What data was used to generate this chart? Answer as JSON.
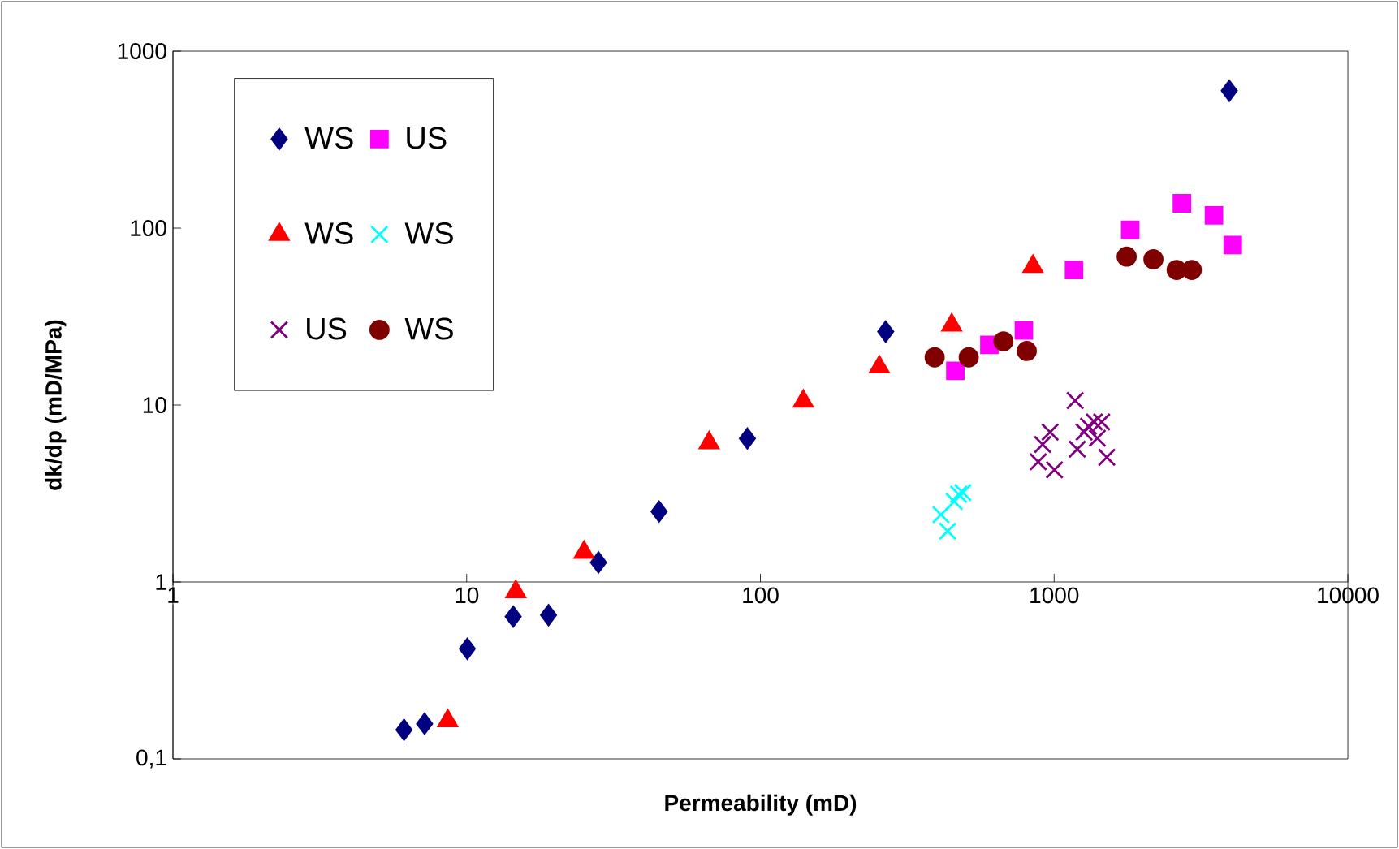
{
  "chart_data": {
    "type": "scatter",
    "xlabel": "Permeability (mD)",
    "ylabel": "dk/dp (mD/MPa)",
    "log": "xy",
    "grid": false,
    "legend": "top left",
    "xlim": [
      1,
      10000
    ],
    "xticks": [
      1,
      10,
      100,
      1000,
      10000
    ],
    "ylim": [
      0.1,
      1000
    ],
    "yticks": [
      {
        "value": 0.1,
        "label": "0,1"
      },
      1,
      10,
      100,
      1000
    ],
    "series": [
      {
        "name": "WS",
        "color": "#000080",
        "marker": "diamond",
        "x": [
          6.12,
          7.19,
          10.05,
          14.4,
          19.0,
          28.1,
          45.2,
          90.3,
          267,
          3948
        ],
        "values": [
          0.146,
          0.158,
          0.419,
          0.637,
          0.65,
          1.29,
          2.5,
          6.47,
          26.0,
          597
        ]
      },
      {
        "name": "US",
        "color": "#ff00ff",
        "marker": "square",
        "x": [
          461,
          602,
          789,
          1169,
          1816,
          2723,
          3501,
          4057
        ],
        "values": [
          15.6,
          21.9,
          26.4,
          58.0,
          97.7,
          138,
          118,
          80.2
        ]
      },
      {
        "name": "WS",
        "color": "#ff0000",
        "marker": "triangle",
        "x": [
          8.62,
          14.7,
          25.1,
          66.9,
          140,
          254,
          448,
          847
        ],
        "values": [
          0.164,
          0.88,
          1.47,
          6.11,
          10.5,
          16.4,
          28.3,
          60.7
        ]
      },
      {
        "name": "WS",
        "color": "#00ffff",
        "marker": "cross",
        "x": [
          434,
          412,
          457,
          489,
          473
        ],
        "values": [
          1.94,
          2.4,
          2.85,
          3.2,
          3.13
        ]
      },
      {
        "name": "US",
        "color": "#800080",
        "marker": "cross",
        "x": [
          1179,
          969,
          914,
          883,
          1003,
          1199,
          1511,
          1309,
          1371,
          1452,
          1403,
          1265
        ],
        "values": [
          10.6,
          7.03,
          5.98,
          4.78,
          4.3,
          5.63,
          5.07,
          7.59,
          8.03,
          8.03,
          6.5,
          7.03
        ]
      },
      {
        "name": "WS",
        "color": "#800000",
        "marker": "circle",
        "x": [
          392,
          512,
          672,
          807,
          1766,
          2178,
          2613,
          2943
        ],
        "values": [
          18.6,
          18.6,
          22.9,
          20.2,
          69.0,
          66.6,
          58,
          58
        ]
      }
    ]
  }
}
